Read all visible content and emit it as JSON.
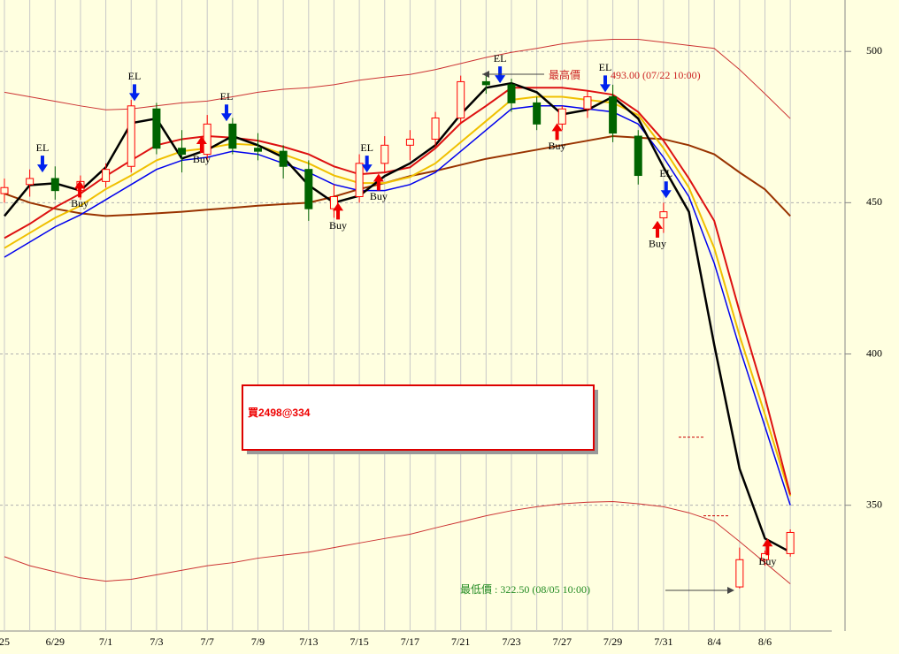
{
  "chart_data": {
    "type": "candlestick",
    "categories": [
      "25",
      null,
      "6/29",
      null,
      "7/1",
      null,
      "7/3",
      null,
      "7/7",
      null,
      "7/9",
      null,
      "7/13",
      null,
      "7/15",
      null,
      "7/17",
      null,
      "7/21",
      null,
      "7/23",
      null,
      "7/27",
      null,
      "7/29",
      null,
      "7/31",
      null,
      "8/4",
      null,
      "8/6",
      null
    ],
    "ylim": [
      309,
      517
    ],
    "yticks": [
      350,
      400,
      450,
      500
    ],
    "grid": true,
    "candles": {
      "up_color": "#ff0000",
      "down_color": "#006400",
      "open": [
        453,
        456,
        458,
        454,
        457,
        462,
        481,
        468,
        466,
        476,
        468,
        467,
        461,
        448,
        452,
        463,
        469,
        471,
        478,
        490,
        489,
        483,
        476,
        481,
        485,
        472,
        445,
        null,
        null,
        323,
        332,
        334
      ],
      "high": [
        458,
        461,
        462,
        459,
        463,
        484,
        483,
        474,
        479,
        478,
        473,
        469,
        464,
        456,
        466,
        472,
        474,
        480,
        492,
        493,
        491,
        485,
        482,
        487,
        489,
        474,
        450,
        null,
        null,
        336,
        335,
        342
      ],
      "low": [
        450,
        452,
        451,
        451,
        455,
        460,
        466,
        460,
        464,
        466,
        464,
        458,
        444,
        445,
        450,
        460,
        464,
        468,
        476,
        486,
        480,
        474,
        474,
        478,
        470,
        456,
        440,
        null,
        null,
        322.5,
        330,
        333
      ],
      "close": [
        455,
        458,
        454,
        457,
        461,
        482,
        468,
        466,
        476,
        468,
        467,
        462,
        448,
        452,
        463,
        469,
        471,
        478,
        490,
        489,
        483,
        476,
        481,
        485,
        473,
        459,
        447,
        null,
        null,
        332,
        334,
        341
      ]
    },
    "series": [
      {
        "color": "#993300",
        "width": 2,
        "values": [
          453,
          450,
          448,
          446.5,
          445.6,
          446,
          446.5,
          447,
          447.7,
          448.3,
          449,
          449.5,
          450,
          452,
          454.5,
          456.5,
          458.8,
          460.5,
          462.5,
          464.5,
          466,
          467.5,
          469,
          470.5,
          472,
          471.5,
          471,
          469,
          466,
          460,
          454.4,
          445.6
        ]
      },
      {
        "color": "#cc3333",
        "width": 1,
        "values": [
          486.5,
          485,
          483.5,
          482,
          480.7,
          481,
          482,
          483,
          483.6,
          485,
          486.5,
          487.5,
          488,
          489,
          490.5,
          491.5,
          492.4,
          494,
          496,
          498,
          499.7,
          501,
          502.5,
          503.5,
          504,
          504,
          503,
          502,
          501,
          494,
          486,
          477.8
        ]
      },
      {
        "color": "#cc3333",
        "width": 1,
        "values": [
          333,
          330,
          328,
          326,
          324.9,
          325.5,
          327,
          328.5,
          330,
          331,
          332.5,
          333.5,
          334.5,
          336,
          337.5,
          339,
          340.4,
          342.5,
          344.5,
          346.5,
          348.2,
          349.5,
          350.5,
          351,
          351.2,
          350.5,
          349.5,
          347.5,
          344.7,
          338,
          331,
          324
        ]
      },
      {
        "color": "#0000ee",
        "width": 1.5,
        "values": [
          432,
          437,
          442,
          446,
          451,
          456,
          461,
          464,
          465,
          467,
          466,
          463,
          460,
          456,
          454,
          454,
          456,
          460,
          467,
          474,
          481,
          482,
          482,
          481,
          480,
          476,
          465,
          452,
          430,
          402,
          376,
          350
        ]
      },
      {
        "color": "#f0c000",
        "width": 2,
        "values": [
          435,
          440,
          445,
          449,
          454.5,
          459,
          464,
          467,
          468,
          469.5,
          469,
          466,
          463,
          459,
          456.5,
          456.5,
          458.5,
          463,
          470,
          477,
          484,
          485,
          485,
          484,
          483,
          479,
          468,
          455,
          435,
          406,
          380,
          353
        ]
      },
      {
        "color": "#dd1111",
        "width": 2,
        "values": [
          438.3,
          443,
          448.5,
          453,
          458.8,
          464,
          469,
          471,
          472,
          471.5,
          470.5,
          468.5,
          466,
          462,
          459.4,
          460,
          461.7,
          468,
          476.3,
          482,
          488,
          488,
          488,
          487,
          485.7,
          480,
          470.5,
          458,
          444,
          414,
          385.7,
          353.5
        ]
      },
      {
        "color": "#000000",
        "width": 2.5,
        "values": [
          445.6,
          455.8,
          456.4,
          454,
          461.7,
          476.3,
          477.8,
          464.6,
          467.5,
          472,
          469,
          465,
          455.8,
          450,
          452.3,
          458.8,
          463,
          469,
          479.2,
          488,
          489.5,
          486.5,
          479.2,
          480.7,
          485,
          477.8,
          461.7,
          447,
          403,
          362,
          339,
          334.5
        ]
      }
    ],
    "levels": [
      372.5,
      346.5
    ],
    "annotations": [
      {
        "text": "EL",
        "kind": "sell",
        "x": 1.5,
        "y": 460
      },
      {
        "text": "EL",
        "kind": "sell",
        "x": 5.13,
        "y": 483.6
      },
      {
        "text": "EL",
        "kind": "sell",
        "x": 8.76,
        "y": 476.9
      },
      {
        "text": "EL",
        "kind": "sell",
        "x": 14.3,
        "y": 460
      },
      {
        "text": "EL",
        "kind": "sell",
        "x": 19.55,
        "y": 489.5
      },
      {
        "text": "EL",
        "kind": "sell",
        "x": 23.7,
        "y": 486.5
      },
      {
        "text": "EL",
        "kind": "sell",
        "x": 26.1,
        "y": 451.5
      },
      {
        "text": "Buy",
        "kind": "buy",
        "x": 2.97,
        "y": 457.3
      },
      {
        "text": "Buy",
        "kind": "buy",
        "x": 7.78,
        "y": 472
      },
      {
        "text": "Buy",
        "kind": "buy",
        "x": 13.16,
        "y": 450
      },
      {
        "text": "Buy",
        "kind": "buy",
        "x": 14.76,
        "y": 459.6
      },
      {
        "text": "Buy",
        "kind": "buy",
        "x": 21.8,
        "y": 476.3
      },
      {
        "text": "Buy",
        "kind": "buy",
        "x": 25.76,
        "y": 444
      },
      {
        "text": "Buy",
        "kind": "buy",
        "x": 30.1,
        "y": 339
      }
    ],
    "high_label": "最高價",
    "high_value": "493.00 (07/22 10:00)",
    "low_label": "最低價 : 322.50 (08/05 10:00)",
    "note": "買2498@334"
  }
}
